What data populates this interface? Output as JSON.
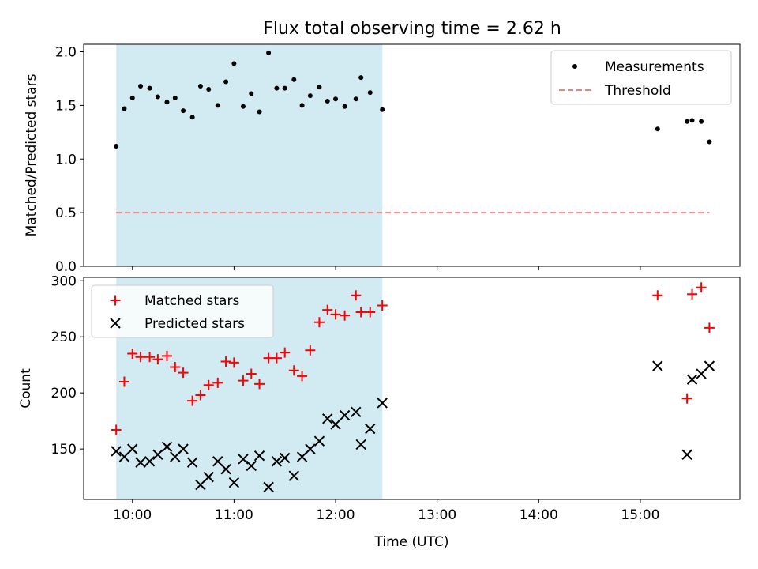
{
  "chart_data": {
    "type": "scatter",
    "title": "Flux total observing time = 2.62 h",
    "colors": {
      "shade": "#add8e6",
      "measurement": "#000000",
      "threshold": "#f08080",
      "matched": "#ff0000",
      "predicted": "#000000"
    },
    "x_axis": {
      "label": "Time (UTC)",
      "unit": "hours",
      "range": [
        9.52,
        15.98
      ],
      "ticks": [
        {
          "value": 10,
          "label": "10:00"
        },
        {
          "value": 11,
          "label": "11:00"
        },
        {
          "value": 12,
          "label": "12:00"
        },
        {
          "value": 13,
          "label": "13:00"
        },
        {
          "value": 14,
          "label": "14:00"
        },
        {
          "value": 15,
          "label": "15:00"
        }
      ]
    },
    "shaded_span": [
      9.84,
      12.46
    ],
    "panels": [
      {
        "ylabel": "Matched/Predicted stars",
        "ylim": [
          0,
          2.07
        ],
        "yticks": [
          {
            "value": 0.0,
            "label": "0.0"
          },
          {
            "value": 0.5,
            "label": "0.5"
          },
          {
            "value": 1.0,
            "label": "1.0"
          },
          {
            "value": 1.5,
            "label": "1.5"
          },
          {
            "value": 2.0,
            "label": "2.0"
          }
        ],
        "threshold": {
          "value": 0.5,
          "x_range": [
            9.84,
            15.68
          ],
          "label": "Threshold"
        },
        "series": [
          {
            "name": "Measurements",
            "marker": "dot",
            "points": [
              [
                9.84,
                1.12
              ],
              [
                9.92,
                1.47
              ],
              [
                10.0,
                1.57
              ],
              [
                10.08,
                1.68
              ],
              [
                10.17,
                1.66
              ],
              [
                10.25,
                1.58
              ],
              [
                10.34,
                1.53
              ],
              [
                10.42,
                1.57
              ],
              [
                10.5,
                1.45
              ],
              [
                10.59,
                1.39
              ],
              [
                10.67,
                1.68
              ],
              [
                10.75,
                1.65
              ],
              [
                10.84,
                1.5
              ],
              [
                10.92,
                1.72
              ],
              [
                11.0,
                1.89
              ],
              [
                11.09,
                1.49
              ],
              [
                11.17,
                1.61
              ],
              [
                11.25,
                1.44
              ],
              [
                11.34,
                1.99
              ],
              [
                11.42,
                1.66
              ],
              [
                11.5,
                1.66
              ],
              [
                11.59,
                1.74
              ],
              [
                11.67,
                1.5
              ],
              [
                11.75,
                1.59
              ],
              [
                11.84,
                1.67
              ],
              [
                11.92,
                1.54
              ],
              [
                12.0,
                1.56
              ],
              [
                12.09,
                1.49
              ],
              [
                12.2,
                1.56
              ],
              [
                12.25,
                1.76
              ],
              [
                12.34,
                1.62
              ],
              [
                12.46,
                1.46
              ],
              [
                15.17,
                1.28
              ],
              [
                15.46,
                1.35
              ],
              [
                15.51,
                1.36
              ],
              [
                15.6,
                1.35
              ],
              [
                15.68,
                1.16
              ]
            ]
          }
        ],
        "legend": {
          "position": "upper right",
          "entries": [
            "Measurements",
            "Threshold"
          ]
        }
      },
      {
        "ylabel": "Count",
        "ylim": [
          105,
          303
        ],
        "yticks": [
          {
            "value": 150,
            "label": "150"
          },
          {
            "value": 200,
            "label": "200"
          },
          {
            "value": 250,
            "label": "250"
          },
          {
            "value": 300,
            "label": "300"
          }
        ],
        "series": [
          {
            "name": "Matched stars",
            "marker": "plus",
            "points": [
              [
                9.84,
                167
              ],
              [
                9.92,
                210
              ],
              [
                10.0,
                235
              ],
              [
                10.08,
                232
              ],
              [
                10.17,
                232
              ],
              [
                10.25,
                230
              ],
              [
                10.34,
                233
              ],
              [
                10.42,
                223
              ],
              [
                10.5,
                218
              ],
              [
                10.59,
                193
              ],
              [
                10.67,
                198
              ],
              [
                10.75,
                207
              ],
              [
                10.84,
                209
              ],
              [
                10.92,
                228
              ],
              [
                11.0,
                227
              ],
              [
                11.09,
                211
              ],
              [
                11.17,
                217
              ],
              [
                11.25,
                208
              ],
              [
                11.34,
                231
              ],
              [
                11.42,
                231
              ],
              [
                11.5,
                236
              ],
              [
                11.59,
                220
              ],
              [
                11.67,
                215
              ],
              [
                11.75,
                238
              ],
              [
                11.84,
                263
              ],
              [
                11.92,
                274
              ],
              [
                12.0,
                270
              ],
              [
                12.09,
                269
              ],
              [
                12.2,
                287
              ],
              [
                12.25,
                272
              ],
              [
                12.34,
                272
              ],
              [
                12.46,
                278
              ],
              [
                15.17,
                287
              ],
              [
                15.46,
                195
              ],
              [
                15.51,
                288
              ],
              [
                15.6,
                294
              ],
              [
                15.68,
                258
              ]
            ]
          },
          {
            "name": "Predicted stars",
            "marker": "x",
            "points": [
              [
                9.84,
                148
              ],
              [
                9.92,
                143
              ],
              [
                10.0,
                150
              ],
              [
                10.08,
                138
              ],
              [
                10.17,
                139
              ],
              [
                10.25,
                145
              ],
              [
                10.34,
                152
              ],
              [
                10.42,
                143
              ],
              [
                10.5,
                150
              ],
              [
                10.59,
                138
              ],
              [
                10.67,
                118
              ],
              [
                10.75,
                125
              ],
              [
                10.84,
                139
              ],
              [
                10.92,
                132
              ],
              [
                11.0,
                120
              ],
              [
                11.09,
                141
              ],
              [
                11.17,
                135
              ],
              [
                11.25,
                144
              ],
              [
                11.34,
                116
              ],
              [
                11.42,
                139
              ],
              [
                11.5,
                142
              ],
              [
                11.59,
                126
              ],
              [
                11.67,
                143
              ],
              [
                11.75,
                150
              ],
              [
                11.84,
                157
              ],
              [
                11.92,
                177
              ],
              [
                12.0,
                172
              ],
              [
                12.09,
                180
              ],
              [
                12.2,
                183
              ],
              [
                12.25,
                154
              ],
              [
                12.34,
                168
              ],
              [
                12.46,
                191
              ],
              [
                15.17,
                224
              ],
              [
                15.46,
                145
              ],
              [
                15.51,
                212
              ],
              [
                15.6,
                217
              ],
              [
                15.68,
                224
              ]
            ]
          }
        ],
        "legend": {
          "position": "upper left",
          "entries": [
            "Matched stars",
            "Predicted stars"
          ]
        }
      }
    ]
  }
}
